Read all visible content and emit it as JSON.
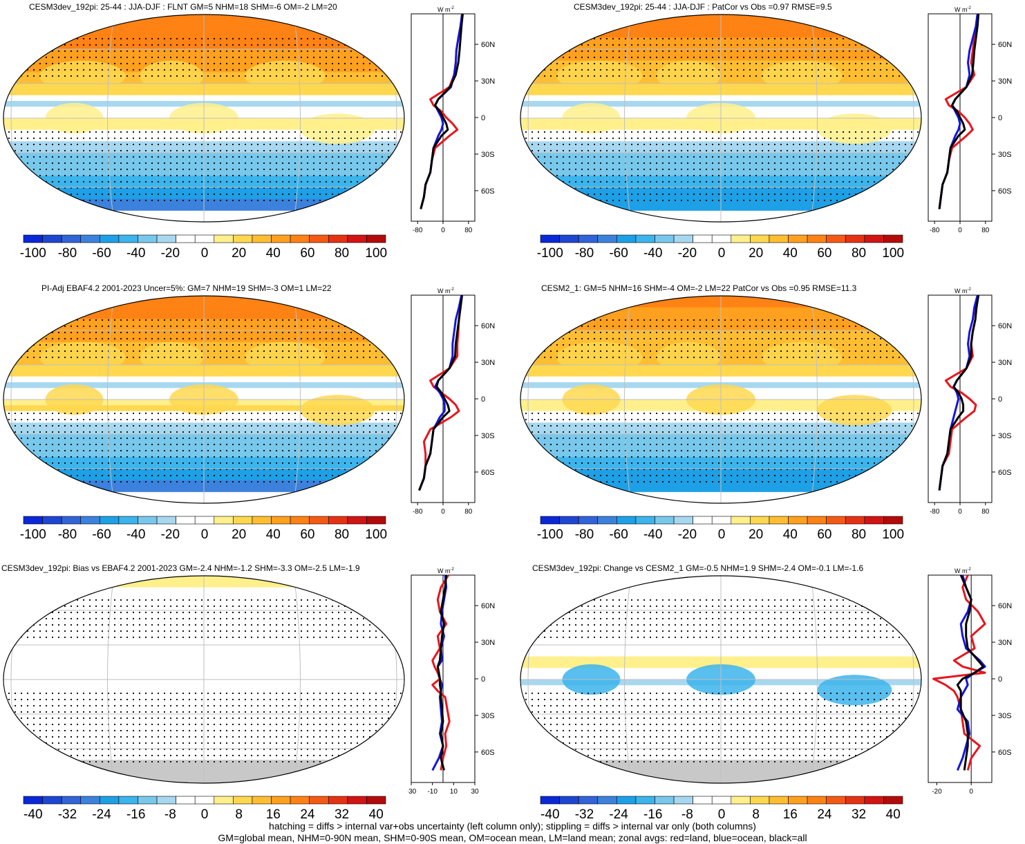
{
  "footer": {
    "line1": "hatching = diffs > internal var+obs uncertainty (left column only); stippling = diffs > internal var only (both columns)",
    "line2": "GM=global mean, NHM=0-90N mean, SHM=0-90S mean, OM=ocean mean, LM=land mean; zonal avgs: red=land, blue=ocean, black=all"
  },
  "colors": {
    "land_zonal": "#e8141c",
    "ocean_zonal": "#1414e0",
    "all_zonal": "#000000",
    "missing": "#c8c8c8"
  },
  "palette": [
    "#0a28d8",
    "#1e46d2",
    "#3264d8",
    "#3c82dc",
    "#1ea0e6",
    "#3cb4ec",
    "#78c8ec",
    "#a8d8f0",
    "#ffffff",
    "#ffffff",
    "#fff08c",
    "#ffd850",
    "#ffbe32",
    "#ffa01e",
    "#ff8214",
    "#f55a14",
    "#e63214",
    "#d21414",
    "#b40a0a"
  ],
  "panels": [
    {
      "id": "p1",
      "title": "CESM3dev_192pi: 25-44 : JJA-DJF : FLNT GM=5 NHM=18 SHM=-6 OM=-2 LM=20",
      "cbar_labels": [
        "-100",
        "-80",
        "-60",
        "-40",
        "-20",
        "0",
        "20",
        "40",
        "60",
        "80",
        "100"
      ],
      "zonal_xticks": [
        "-80",
        "0",
        "80"
      ],
      "zonal_yticks": [
        "60N",
        "30N",
        "0",
        "30S",
        "60S"
      ],
      "unit": "W m",
      "unit_sup": "-2"
    },
    {
      "id": "p2",
      "title": "CESM3dev_192pi: 25-44 : JJA-DJF : PatCor vs Obs =0.97 RMSE=9.5",
      "cbar_labels": [
        "-100",
        "-80",
        "-60",
        "-40",
        "-20",
        "0",
        "20",
        "40",
        "60",
        "80",
        "100"
      ],
      "zonal_xticks": [
        "-80",
        "0",
        "80"
      ],
      "zonal_yticks": [
        "60N",
        "30N",
        "0",
        "30S",
        "60S"
      ],
      "unit": "W m",
      "unit_sup": "-2"
    },
    {
      "id": "p3",
      "title": "PI-Adj EBAF4.2 2001-2023 Uncer=5%: GM=7 NHM=19 SHM=-3 OM=1 LM=22",
      "cbar_labels": [
        "-100",
        "-80",
        "-60",
        "-40",
        "-20",
        "0",
        "20",
        "40",
        "60",
        "80",
        "100"
      ],
      "zonal_xticks": [
        "-80",
        "0",
        "80"
      ],
      "zonal_yticks": [
        "60N",
        "30N",
        "0",
        "30S",
        "60S"
      ],
      "unit": "W m",
      "unit_sup": "-2"
    },
    {
      "id": "p4",
      "title": "CESM2_1: GM=5 NHM=16 SHM=-4 OM=-2 LM=22 PatCor vs Obs =0.95 RMSE=11.3",
      "cbar_labels": [
        "-100",
        "-80",
        "-60",
        "-40",
        "-20",
        "0",
        "20",
        "40",
        "60",
        "80",
        "100"
      ],
      "zonal_xticks": [
        "-80",
        "0",
        "80"
      ],
      "zonal_yticks": [
        "60N",
        "30N",
        "0",
        "30S",
        "60S"
      ],
      "unit": "W m",
      "unit_sup": "-2"
    },
    {
      "id": "p5",
      "title": "CESM3dev_192pi: Bias vs EBAF4.2 2001-2023 GM=-2.4 NHM=-1.2 SHM=-3.3 OM=-2.5 LM=-1.9",
      "cbar_labels": [
        "-40",
        "-32",
        "-24",
        "-16",
        "-8",
        "0",
        "8",
        "16",
        "24",
        "32",
        "40"
      ],
      "zonal_xticks": [
        "-30",
        "-10",
        "10",
        "30"
      ],
      "zonal_yticks": [
        "60N",
        "30N",
        "0",
        "30S",
        "60S"
      ],
      "unit": "W m",
      "unit_sup": "-2"
    },
    {
      "id": "p6",
      "title": "CESM3dev_192pi: Change vs CESM2_1 GM=-0.5 NHM=1.9 SHM=-2.4 OM=-0.1 LM=-1.6",
      "cbar_labels": [
        "-40",
        "-32",
        "-24",
        "-16",
        "-8",
        "0",
        "8",
        "16",
        "24",
        "32",
        "40"
      ],
      "zonal_xticks": [
        "-20",
        "0"
      ],
      "zonal_yticks": [
        "60N",
        "30N",
        "0",
        "30S",
        "60S"
      ],
      "unit": "W m",
      "unit_sup": "-2"
    }
  ],
  "chart_data": [
    {
      "type": "line",
      "panel": "p1",
      "title": "CESM3dev_192pi: 25-44 : JJA-DJF : FLNT GM=5 NHM=18 SHM=-6 OM=-2 LM=20",
      "lat": [
        85,
        75,
        65,
        55,
        45,
        35,
        25,
        15,
        10,
        5,
        0,
        -5,
        -10,
        -15,
        -25,
        -35,
        -45,
        -55,
        -65,
        -75
      ],
      "xlim": [
        -100,
        100
      ],
      "series": [
        {
          "name": "land",
          "values": [
            60,
            55,
            48,
            42,
            40,
            35,
            20,
            -40,
            -30,
            -5,
            10,
            30,
            45,
            20,
            -25,
            -35,
            -40,
            -55,
            -60,
            -70
          ]
        },
        {
          "name": "ocean",
          "values": [
            60,
            55,
            48,
            42,
            40,
            35,
            25,
            -15,
            -25,
            -15,
            -5,
            0,
            -5,
            -15,
            -30,
            -35,
            -40,
            -55,
            -60,
            -70
          ]
        },
        {
          "name": "all",
          "values": [
            62,
            58,
            55,
            52,
            48,
            40,
            22,
            -15,
            -25,
            -10,
            0,
            10,
            15,
            -5,
            -30,
            -35,
            -40,
            -55,
            -60,
            -70
          ]
        }
      ]
    },
    {
      "type": "line",
      "panel": "p2",
      "lat": [
        85,
        75,
        65,
        55,
        45,
        35,
        25,
        15,
        10,
        5,
        0,
        -5,
        -10,
        -15,
        -25,
        -35,
        -45,
        -55,
        -65,
        -75
      ],
      "xlim": [
        -100,
        100
      ],
      "series": [
        {
          "name": "land",
          "values": [
            55,
            50,
            45,
            40,
            35,
            45,
            20,
            -45,
            -35,
            -5,
            15,
            30,
            40,
            20,
            -25,
            -35,
            -40,
            -55,
            -60,
            -65
          ]
        },
        {
          "name": "ocean",
          "values": [
            55,
            50,
            40,
            30,
            25,
            30,
            20,
            -15,
            -25,
            -15,
            -5,
            0,
            -5,
            -15,
            -30,
            -35,
            -40,
            -55,
            -60,
            -65
          ]
        },
        {
          "name": "all",
          "values": [
            58,
            55,
            50,
            45,
            42,
            38,
            20,
            -15,
            -25,
            -10,
            0,
            10,
            15,
            -5,
            -30,
            -35,
            -40,
            -55,
            -60,
            -65
          ]
        }
      ]
    },
    {
      "type": "line",
      "panel": "p3",
      "lat": [
        85,
        75,
        65,
        55,
        45,
        35,
        25,
        15,
        10,
        5,
        0,
        -5,
        -10,
        -15,
        -25,
        -35,
        -45,
        -55,
        -65,
        -75
      ],
      "xlim": [
        -100,
        100
      ],
      "series": [
        {
          "name": "land",
          "values": [
            58,
            55,
            50,
            48,
            45,
            45,
            20,
            -40,
            -30,
            -5,
            20,
            40,
            50,
            25,
            -40,
            -60,
            -55,
            -55,
            -60,
            -75
          ]
        },
        {
          "name": "ocean",
          "values": [
            58,
            50,
            40,
            35,
            30,
            30,
            20,
            -15,
            -25,
            -10,
            0,
            5,
            5,
            -10,
            -30,
            -35,
            -40,
            -55,
            -60,
            -75
          ]
        },
        {
          "name": "all",
          "values": [
            60,
            55,
            50,
            45,
            40,
            38,
            20,
            -15,
            -20,
            -5,
            5,
            15,
            20,
            0,
            -30,
            -35,
            -40,
            -55,
            -60,
            -75
          ]
        }
      ]
    },
    {
      "type": "line",
      "panel": "p4",
      "lat": [
        85,
        75,
        65,
        55,
        45,
        35,
        25,
        15,
        10,
        5,
        0,
        -5,
        -10,
        -15,
        -25,
        -35,
        -45,
        -55,
        -65,
        -75
      ],
      "xlim": [
        -100,
        100
      ],
      "series": [
        {
          "name": "land",
          "values": [
            55,
            50,
            48,
            40,
            35,
            40,
            20,
            -45,
            -30,
            5,
            30,
            50,
            45,
            20,
            -25,
            -30,
            -35,
            -55,
            -60,
            -65
          ]
        },
        {
          "name": "ocean",
          "values": [
            55,
            45,
            40,
            30,
            25,
            30,
            20,
            -10,
            -20,
            -10,
            -5,
            -10,
            -15,
            -20,
            -30,
            -35,
            -40,
            -55,
            -60,
            -65
          ]
        },
        {
          "name": "all",
          "values": [
            58,
            52,
            48,
            40,
            35,
            35,
            20,
            -10,
            -20,
            -5,
            5,
            10,
            10,
            -5,
            -30,
            -35,
            -40,
            -55,
            -60,
            -65
          ]
        }
      ]
    },
    {
      "type": "line",
      "panel": "p5",
      "lat": [
        85,
        75,
        65,
        55,
        45,
        35,
        25,
        15,
        10,
        5,
        0,
        -5,
        -10,
        -15,
        -25,
        -35,
        -45,
        -55,
        -65,
        -75
      ],
      "xlim": [
        -30,
        30
      ],
      "series": [
        {
          "name": "land",
          "values": [
            5,
            -2,
            -5,
            -3,
            3,
            -5,
            -3,
            -10,
            -8,
            -5,
            -3,
            -10,
            -5,
            2,
            4,
            6,
            2,
            3,
            0,
            -2
          ]
        },
        {
          "name": "ocean",
          "values": [
            2,
            3,
            1,
            -1,
            -2,
            1,
            -2,
            -1,
            -5,
            -4,
            -3,
            -1,
            -2,
            -3,
            -2,
            -1,
            -3,
            0,
            -4,
            -10
          ]
        },
        {
          "name": "all",
          "values": [
            3,
            2,
            0,
            -2,
            1,
            -1,
            -2,
            -3,
            -5,
            -4,
            -3,
            -3,
            -2,
            -2,
            -1,
            0,
            -2,
            0,
            -2,
            1
          ]
        }
      ]
    },
    {
      "type": "line",
      "panel": "p6",
      "lat": [
        85,
        75,
        65,
        55,
        45,
        35,
        25,
        15,
        10,
        5,
        0,
        -5,
        -10,
        -15,
        -25,
        -35,
        -45,
        -55,
        -65,
        -75
      ],
      "xlim": [
        -25,
        12
      ],
      "series": [
        {
          "name": "land",
          "values": [
            -2,
            -5,
            -3,
            4,
            8,
            0,
            2,
            -10,
            -5,
            8,
            -22,
            -15,
            -10,
            -8,
            -6,
            -5,
            -4,
            5,
            0,
            -2
          ]
        },
        {
          "name": "ocean",
          "values": [
            -5,
            -3,
            0,
            -2,
            -6,
            -5,
            -3,
            5,
            8,
            2,
            -3,
            -2,
            -4,
            -6,
            -8,
            -2,
            -1,
            -3,
            -5,
            -8
          ]
        },
        {
          "name": "all",
          "values": [
            -6,
            -3,
            0,
            -1,
            -3,
            -3,
            -2,
            4,
            7,
            2,
            -5,
            -8,
            -6,
            -6,
            -6,
            -3,
            -2,
            -2,
            -3,
            -4
          ]
        }
      ]
    }
  ]
}
